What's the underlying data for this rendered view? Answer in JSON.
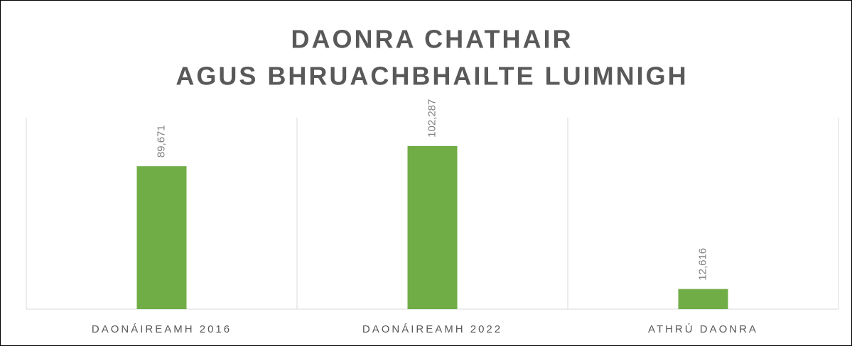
{
  "chart_data": {
    "type": "bar",
    "title": [
      "DAONRA CHATHAIR",
      "AGUS BHRUACHBHAILTE LUIMNIGH"
    ],
    "categories": [
      "DAONÁIREAMH 2016",
      "DAONÁIREAMH 2022",
      "ATHRÚ DAONRA"
    ],
    "values": [
      89671,
      102287,
      12616
    ],
    "value_labels": [
      "89,671",
      "102,287",
      "12,616"
    ],
    "color": "#70ad47",
    "ylim": [
      0,
      120000
    ]
  }
}
